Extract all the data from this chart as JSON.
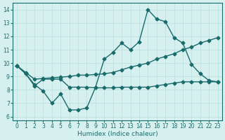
{
  "xlabel": "Humidex (Indice chaleur)",
  "background_color": "#d6f0f0",
  "line_color": "#1a6b6b",
  "xlim": [
    -0.5,
    23.5
  ],
  "ylim": [
    5.7,
    14.5
  ],
  "xticks": [
    0,
    1,
    2,
    3,
    4,
    5,
    6,
    7,
    8,
    9,
    10,
    11,
    12,
    13,
    14,
    15,
    16,
    17,
    18,
    19,
    20,
    21,
    22,
    23
  ],
  "yticks": [
    6,
    7,
    8,
    9,
    10,
    11,
    12,
    13,
    14
  ],
  "line1_x": [
    0,
    1,
    2,
    3,
    4,
    5,
    6,
    7,
    8,
    9,
    10,
    11,
    12,
    13,
    14,
    15,
    16,
    17,
    18,
    19,
    20,
    21,
    22,
    23
  ],
  "line1_y": [
    9.8,
    9.2,
    8.4,
    7.9,
    7.0,
    7.7,
    6.5,
    6.5,
    6.65,
    8.2,
    10.3,
    10.8,
    11.5,
    11.0,
    11.6,
    14.0,
    13.3,
    13.1,
    11.9,
    11.5,
    9.9,
    9.2,
    8.7,
    8.6
  ],
  "line2_x": [
    0,
    1,
    2,
    3,
    4,
    5,
    6,
    7,
    8,
    9,
    10,
    11,
    12,
    13,
    14,
    15,
    16,
    17,
    18,
    19,
    20,
    21,
    22,
    23
  ],
  "line2_y": [
    9.8,
    9.2,
    8.3,
    8.8,
    8.8,
    8.8,
    8.2,
    8.2,
    8.2,
    8.15,
    8.15,
    8.15,
    8.2,
    8.2,
    8.2,
    8.2,
    8.3,
    8.4,
    8.5,
    8.6,
    8.6,
    8.6,
    8.6,
    8.6
  ],
  "line3_x": [
    0,
    1,
    2,
    3,
    4,
    5,
    6,
    7,
    8,
    9,
    10,
    11,
    12,
    13,
    14,
    15,
    16,
    17,
    18,
    19,
    20,
    21,
    22,
    23
  ],
  "line3_y": [
    9.8,
    9.3,
    8.8,
    8.85,
    8.9,
    8.95,
    9.0,
    9.1,
    9.1,
    9.15,
    9.2,
    9.3,
    9.5,
    9.7,
    9.85,
    10.0,
    10.3,
    10.5,
    10.7,
    11.0,
    11.2,
    11.5,
    11.7,
    11.9
  ],
  "grid_color": "#b8dede",
  "marker": "D",
  "markersize": 2.5,
  "linewidth": 1.0
}
